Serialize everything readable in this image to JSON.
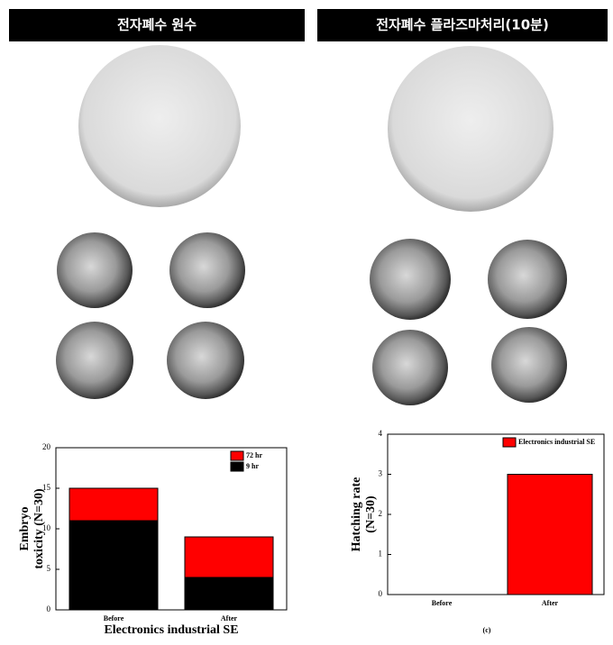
{
  "headers": [
    "전자폐수 원수",
    "전자폐수 플라즈마처리(10분)"
  ],
  "chart_data": [
    {
      "type": "stacked-bar",
      "ylabel": [
        "Embryo",
        "toxicity (N=30)"
      ],
      "xlabel": "Electronics industrial SE",
      "categories": [
        "Before",
        "After"
      ],
      "series": [
        {
          "name": "9 hr",
          "color": "#000000",
          "values": [
            11,
            4
          ]
        },
        {
          "name": "72 hr",
          "color": "#ff0000",
          "values": [
            4,
            5
          ]
        }
      ],
      "ylim": [
        0,
        20
      ],
      "yticks": [
        0,
        5,
        10,
        15,
        20
      ],
      "legend": "top-right"
    },
    {
      "type": "bar",
      "ylabel": [
        "Hatching rate",
        "(N=30)"
      ],
      "annotation": "(c)",
      "categories": [
        "Before",
        "After"
      ],
      "series": [
        {
          "name": "Electronics industrial SE",
          "color": "#ff0000",
          "values": [
            0,
            3
          ]
        }
      ],
      "ylim": [
        0,
        4
      ],
      "yticks": [
        0,
        1,
        2,
        3,
        4
      ],
      "legend": "top-right"
    }
  ]
}
